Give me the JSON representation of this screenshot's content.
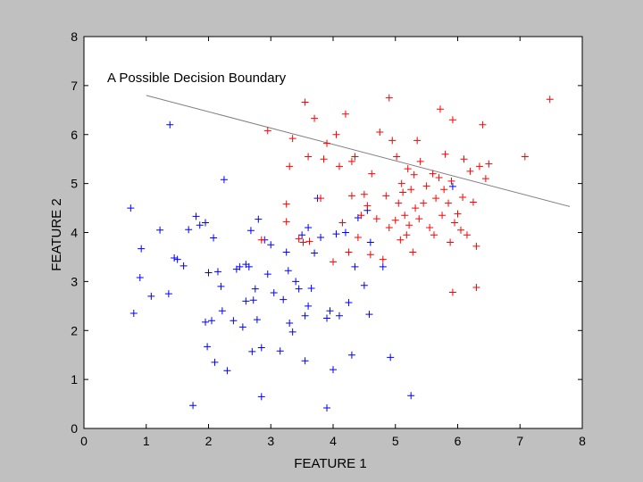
{
  "chart_data": {
    "type": "scatter",
    "title": "",
    "xlabel": "FEATURE 1",
    "ylabel": "FEATURE 2",
    "xlim": [
      0,
      8
    ],
    "ylim": [
      0,
      8
    ],
    "xticks": [
      "0",
      "1",
      "2",
      "3",
      "4",
      "5",
      "6",
      "7",
      "8"
    ],
    "yticks": [
      "0",
      "1",
      "2",
      "3",
      "4",
      "5",
      "6",
      "7",
      "8"
    ],
    "grid": false,
    "annotation": "A Possible Decision Boundary",
    "marker": "+",
    "colors": {
      "class_a": "#ff0000",
      "class_b": "#0000ff",
      "boundary": "#808080",
      "figure_bg": "#c0c0c0",
      "axes_bg": "#ffffff"
    },
    "boundary_line": {
      "x": [
        1.0,
        7.8
      ],
      "y": [
        6.8,
        4.53
      ]
    },
    "series": [
      {
        "color": "#0000ff",
        "x": [
          0.75,
          0.8,
          0.9,
          0.92,
          1.08,
          1.22,
          1.36,
          1.38,
          1.45,
          1.5,
          1.6,
          1.68,
          1.75,
          1.8,
          1.86,
          1.95,
          1.98,
          2.0,
          2.05,
          2.08,
          2.1,
          2.15,
          2.2,
          2.25,
          2.3,
          2.4,
          2.45,
          2.5,
          2.55,
          2.6,
          2.65,
          2.68,
          2.7,
          2.72,
          2.75,
          2.78,
          2.8,
          2.85,
          2.9,
          2.95,
          3.0,
          3.05,
          3.15,
          3.2,
          3.25,
          3.3,
          3.35,
          3.4,
          3.45,
          3.5,
          3.55,
          3.55,
          3.6,
          3.6,
          3.65,
          3.7,
          3.75,
          3.8,
          3.9,
          3.95,
          4.0,
          4.05,
          4.1,
          4.2,
          4.25,
          4.3,
          4.35,
          4.4,
          4.5,
          4.55,
          4.58,
          4.6,
          4.8,
          4.92,
          5.25,
          5.92,
          2.85,
          3.28,
          1.95,
          2.22,
          3.9,
          2.6
        ],
        "y": [
          4.5,
          2.35,
          3.08,
          3.67,
          2.7,
          4.05,
          2.75,
          6.2,
          3.48,
          3.45,
          3.32,
          4.06,
          0.47,
          4.33,
          4.15,
          2.17,
          1.67,
          3.18,
          2.2,
          3.89,
          1.35,
          3.2,
          2.9,
          5.08,
          1.18,
          2.2,
          3.25,
          3.3,
          2.07,
          3.35,
          3.3,
          4.04,
          1.57,
          2.62,
          2.85,
          2.22,
          4.27,
          1.65,
          3.85,
          3.15,
          3.75,
          2.77,
          1.58,
          2.63,
          3.6,
          2.15,
          1.97,
          3.0,
          2.85,
          3.95,
          1.38,
          2.3,
          4.1,
          2.5,
          2.86,
          3.58,
          4.7,
          3.9,
          0.42,
          2.4,
          1.2,
          3.97,
          2.3,
          4.0,
          2.57,
          1.5,
          3.3,
          4.3,
          2.92,
          4.45,
          2.33,
          3.8,
          3.3,
          1.45,
          0.67,
          4.94,
          0.65,
          3.22,
          4.2,
          2.4,
          2.25,
          2.6
        ]
      },
      {
        "color": "#ff0000",
        "x": [
          2.85,
          2.95,
          3.25,
          3.3,
          3.35,
          3.45,
          3.55,
          3.6,
          3.62,
          3.7,
          3.8,
          3.85,
          3.9,
          4.0,
          4.05,
          4.1,
          4.15,
          4.2,
          4.25,
          4.3,
          4.35,
          4.4,
          4.45,
          4.5,
          4.55,
          4.6,
          4.62,
          4.7,
          4.75,
          4.8,
          4.85,
          4.9,
          4.95,
          5.0,
          5.02,
          5.05,
          5.08,
          5.1,
          5.12,
          5.15,
          5.18,
          5.2,
          5.22,
          5.25,
          5.28,
          5.3,
          5.32,
          5.35,
          5.38,
          5.4,
          5.45,
          5.5,
          5.55,
          5.6,
          5.62,
          5.65,
          5.7,
          5.72,
          5.75,
          5.78,
          5.8,
          5.85,
          5.88,
          5.9,
          5.92,
          5.95,
          6.0,
          6.05,
          6.08,
          6.1,
          6.15,
          6.2,
          6.25,
          6.3,
          6.35,
          6.4,
          6.45,
          6.5,
          7.08,
          7.48,
          3.52,
          4.9,
          5.92,
          6.3,
          3.25,
          4.3
        ],
        "y": [
          3.85,
          6.08,
          4.58,
          5.35,
          5.92,
          3.87,
          6.66,
          5.55,
          3.82,
          6.33,
          4.7,
          5.5,
          5.82,
          3.4,
          6.0,
          5.35,
          4.2,
          6.42,
          3.6,
          5.45,
          5.55,
          3.9,
          4.35,
          4.78,
          4.55,
          3.55,
          5.2,
          4.28,
          6.05,
          3.45,
          4.75,
          6.75,
          5.88,
          4.25,
          5.55,
          4.6,
          3.85,
          5.0,
          4.82,
          4.35,
          3.95,
          5.3,
          4.15,
          4.88,
          3.6,
          5.18,
          4.5,
          5.88,
          4.28,
          5.45,
          4.6,
          4.95,
          4.1,
          5.2,
          3.95,
          4.7,
          5.12,
          6.52,
          4.35,
          4.88,
          5.6,
          4.6,
          3.8,
          5.05,
          2.78,
          4.2,
          4.38,
          4.05,
          4.72,
          5.5,
          3.95,
          5.25,
          4.62,
          3.72,
          5.35,
          6.2,
          5.1,
          5.4,
          5.55,
          6.72,
          3.8,
          4.1,
          6.3,
          2.88,
          4.22,
          4.75
        ]
      }
    ]
  }
}
